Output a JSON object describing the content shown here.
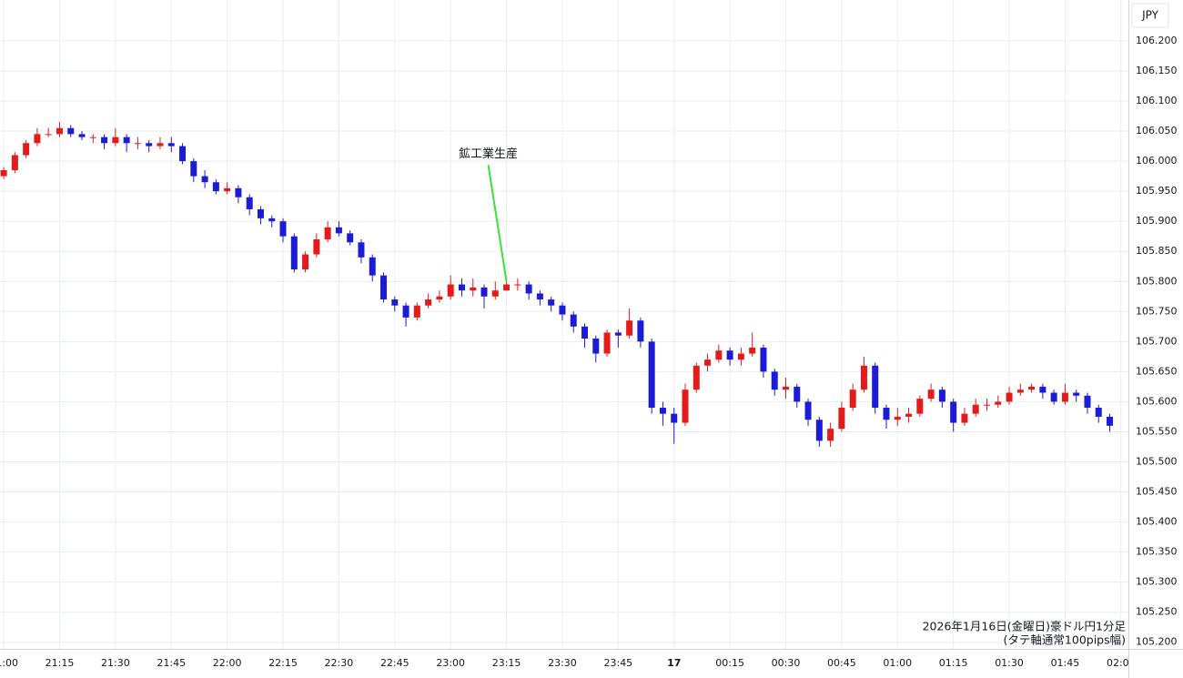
{
  "chart_data": {
    "type": "candlestick",
    "currency_label": "JPY",
    "footnote": [
      "2026年1月16日(金曜日)豪ドル円1分足",
      "(タテ軸通常100pips幅)"
    ],
    "colors": {
      "up": "#e31b1b",
      "down": "#1c1cd6",
      "annotation": "#3de03d"
    },
    "annotations": [
      {
        "text": "鉱工業生産",
        "x": "23:15"
      }
    ],
    "x": [
      "21:00",
      "21:03",
      "21:06",
      "21:09",
      "21:12",
      "21:15",
      "21:18",
      "21:21",
      "21:24",
      "21:27",
      "21:30",
      "21:33",
      "21:36",
      "21:39",
      "21:42",
      "21:45",
      "21:48",
      "21:51",
      "21:54",
      "21:57",
      "22:00",
      "22:03",
      "22:06",
      "22:09",
      "22:12",
      "22:15",
      "22:18",
      "22:21",
      "22:24",
      "22:27",
      "22:30",
      "22:33",
      "22:36",
      "22:39",
      "22:42",
      "22:45",
      "22:48",
      "22:51",
      "22:54",
      "22:57",
      "23:00",
      "23:03",
      "23:06",
      "23:09",
      "23:12",
      "23:15",
      "23:18",
      "23:21",
      "23:24",
      "23:27",
      "23:30",
      "23:33",
      "23:36",
      "23:39",
      "23:42",
      "23:45",
      "23:48",
      "23:51",
      "23:54",
      "23:57",
      "00:00",
      "00:03",
      "00:06",
      "00:09",
      "00:12",
      "00:15",
      "00:18",
      "00:21",
      "00:24",
      "00:27",
      "00:30",
      "00:33",
      "00:36",
      "00:39",
      "00:42",
      "00:45",
      "00:48",
      "00:51",
      "00:54",
      "00:57",
      "01:00",
      "01:03",
      "01:06",
      "01:09",
      "01:12",
      "01:15",
      "01:18",
      "01:21",
      "01:24",
      "01:27",
      "01:30",
      "01:33",
      "01:36",
      "01:39",
      "01:42",
      "01:45",
      "01:48",
      "01:51",
      "01:54",
      "01:57"
    ],
    "open": [
      105.975,
      105.985,
      106.01,
      106.03,
      106.045,
      106.045,
      106.055,
      106.045,
      106.04,
      106.04,
      106.03,
      106.04,
      106.03,
      106.03,
      106.025,
      106.03,
      106.025,
      106.0,
      105.975,
      105.965,
      105.95,
      105.955,
      105.94,
      105.92,
      105.905,
      105.9,
      105.875,
      105.82,
      105.845,
      105.87,
      105.89,
      105.88,
      105.865,
      105.84,
      105.81,
      105.77,
      105.76,
      105.74,
      105.76,
      105.77,
      105.775,
      105.795,
      105.785,
      105.79,
      105.775,
      105.785,
      105.795,
      105.795,
      105.78,
      105.77,
      105.76,
      105.745,
      105.725,
      105.705,
      105.68,
      105.715,
      105.71,
      105.735,
      105.7,
      105.59,
      105.58,
      105.565,
      105.62,
      105.66,
      105.67,
      105.685,
      105.67,
      105.68,
      105.69,
      105.65,
      105.62,
      105.625,
      105.6,
      105.57,
      105.535,
      105.555,
      105.59,
      105.62,
      105.66,
      105.59,
      105.57,
      105.575,
      105.58,
      105.605,
      105.62,
      105.6,
      105.565,
      105.58,
      105.595,
      105.595,
      105.6,
      105.615,
      105.62,
      105.625,
      105.615,
      105.6,
      105.615,
      105.61,
      105.59,
      105.575
    ],
    "high": [
      105.99,
      106.015,
      106.035,
      106.055,
      106.055,
      106.065,
      106.06,
      106.05,
      106.045,
      106.045,
      106.055,
      106.045,
      106.04,
      106.035,
      106.04,
      106.04,
      106.03,
      106.005,
      105.985,
      105.97,
      105.965,
      105.96,
      105.945,
      105.925,
      105.91,
      105.905,
      105.88,
      105.85,
      105.88,
      105.9,
      105.9,
      105.885,
      105.87,
      105.845,
      105.815,
      105.775,
      105.765,
      105.765,
      105.78,
      105.785,
      105.81,
      105.805,
      105.805,
      105.795,
      105.8,
      105.8,
      105.805,
      105.8,
      105.785,
      105.775,
      105.765,
      105.75,
      105.73,
      105.71,
      105.72,
      105.72,
      105.755,
      105.74,
      105.705,
      105.6,
      105.59,
      105.63,
      105.665,
      105.68,
      105.695,
      105.69,
      105.69,
      105.715,
      105.695,
      105.655,
      105.64,
      105.63,
      105.605,
      105.575,
      105.565,
      105.6,
      105.63,
      105.675,
      105.665,
      105.595,
      105.59,
      105.59,
      105.61,
      105.63,
      105.625,
      105.605,
      105.59,
      105.605,
      105.605,
      105.61,
      105.625,
      105.63,
      105.63,
      105.63,
      105.62,
      105.63,
      105.62,
      105.615,
      105.595,
      105.58
    ],
    "low": [
      105.97,
      105.98,
      106.005,
      106.025,
      106.04,
      106.04,
      106.04,
      106.035,
      106.03,
      106.02,
      106.025,
      106.015,
      106.02,
      106.015,
      106.02,
      106.015,
      105.995,
      105.965,
      105.955,
      105.945,
      105.945,
      105.93,
      105.91,
      105.895,
      105.89,
      105.865,
      105.815,
      105.815,
      105.84,
      105.865,
      105.875,
      105.86,
      105.83,
      105.8,
      105.765,
      105.75,
      105.725,
      105.735,
      105.755,
      105.765,
      105.77,
      105.775,
      105.775,
      105.755,
      105.77,
      105.785,
      105.785,
      105.77,
      105.76,
      105.75,
      105.735,
      105.715,
      105.69,
      105.665,
      105.675,
      105.69,
      105.705,
      105.69,
      105.58,
      105.56,
      105.53,
      105.56,
      105.615,
      105.65,
      105.665,
      105.66,
      105.66,
      105.675,
      105.64,
      105.61,
      105.605,
      105.59,
      105.56,
      105.525,
      105.525,
      105.55,
      105.585,
      105.615,
      105.58,
      105.555,
      105.56,
      105.565,
      105.575,
      105.6,
      105.59,
      105.55,
      105.56,
      105.575,
      105.585,
      105.59,
      105.595,
      105.61,
      105.615,
      105.605,
      105.595,
      105.595,
      105.6,
      105.58,
      105.565,
      105.55
    ],
    "close": [
      105.985,
      106.01,
      106.03,
      106.045,
      106.045,
      106.055,
      106.045,
      106.04,
      106.04,
      106.03,
      106.04,
      106.03,
      106.03,
      106.025,
      106.03,
      106.025,
      106.0,
      105.975,
      105.965,
      105.95,
      105.955,
      105.94,
      105.92,
      105.905,
      105.9,
      105.875,
      105.82,
      105.845,
      105.87,
      105.89,
      105.88,
      105.865,
      105.84,
      105.81,
      105.77,
      105.76,
      105.74,
      105.76,
      105.77,
      105.775,
      105.795,
      105.785,
      105.79,
      105.775,
      105.785,
      105.795,
      105.795,
      105.78,
      105.77,
      105.76,
      105.745,
      105.725,
      105.705,
      105.68,
      105.715,
      105.71,
      105.735,
      105.7,
      105.59,
      105.58,
      105.565,
      105.62,
      105.66,
      105.67,
      105.685,
      105.67,
      105.68,
      105.69,
      105.65,
      105.62,
      105.625,
      105.6,
      105.57,
      105.535,
      105.555,
      105.59,
      105.62,
      105.66,
      105.59,
      105.57,
      105.575,
      105.58,
      105.605,
      105.62,
      105.6,
      105.565,
      105.58,
      105.595,
      105.595,
      105.6,
      105.615,
      105.62,
      105.625,
      105.615,
      105.6,
      105.615,
      105.61,
      105.59,
      105.575,
      105.56
    ],
    "xlim": [
      "20:59",
      "02:02"
    ],
    "xticks": [
      "21:00",
      "21:15",
      "21:30",
      "21:45",
      "22:00",
      "22:15",
      "22:30",
      "22:45",
      "23:00",
      "23:15",
      "23:30",
      "23:45",
      {
        "value": "00:00",
        "label": "17"
      },
      "00:15",
      "00:30",
      "00:45",
      "01:00",
      "01:15",
      "01:30",
      "01:45",
      "02:00"
    ],
    "ylim": [
      105.189,
      106.268
    ],
    "yticks": [
      {
        "value": 105.2,
        "label": "105.200"
      },
      {
        "value": 105.25,
        "label": "105.250"
      },
      {
        "value": 105.3,
        "label": "105.300"
      },
      {
        "value": 105.35,
        "label": "105.350"
      },
      {
        "value": 105.4,
        "label": "105.400"
      },
      {
        "value": 105.45,
        "label": "105.450"
      },
      {
        "value": 105.5,
        "label": "105.500"
      },
      {
        "value": 105.55,
        "label": "105.550"
      },
      {
        "value": 105.6,
        "label": "105.600"
      },
      {
        "value": 105.65,
        "label": "105.650"
      },
      {
        "value": 105.7,
        "label": "105.700"
      },
      {
        "value": 105.75,
        "label": "105.750"
      },
      {
        "value": 105.8,
        "label": "105.800"
      },
      {
        "value": 105.85,
        "label": "105.850"
      },
      {
        "value": 105.9,
        "label": "105.900"
      },
      {
        "value": 105.95,
        "label": "105.950"
      },
      {
        "value": 106.0,
        "label": "106.000"
      },
      {
        "value": 106.05,
        "label": "106.050"
      },
      {
        "value": 106.1,
        "label": "106.100"
      },
      {
        "value": 106.15,
        "label": "106.150"
      },
      {
        "value": 106.2,
        "label": "106.200"
      }
    ],
    "grid": true
  }
}
